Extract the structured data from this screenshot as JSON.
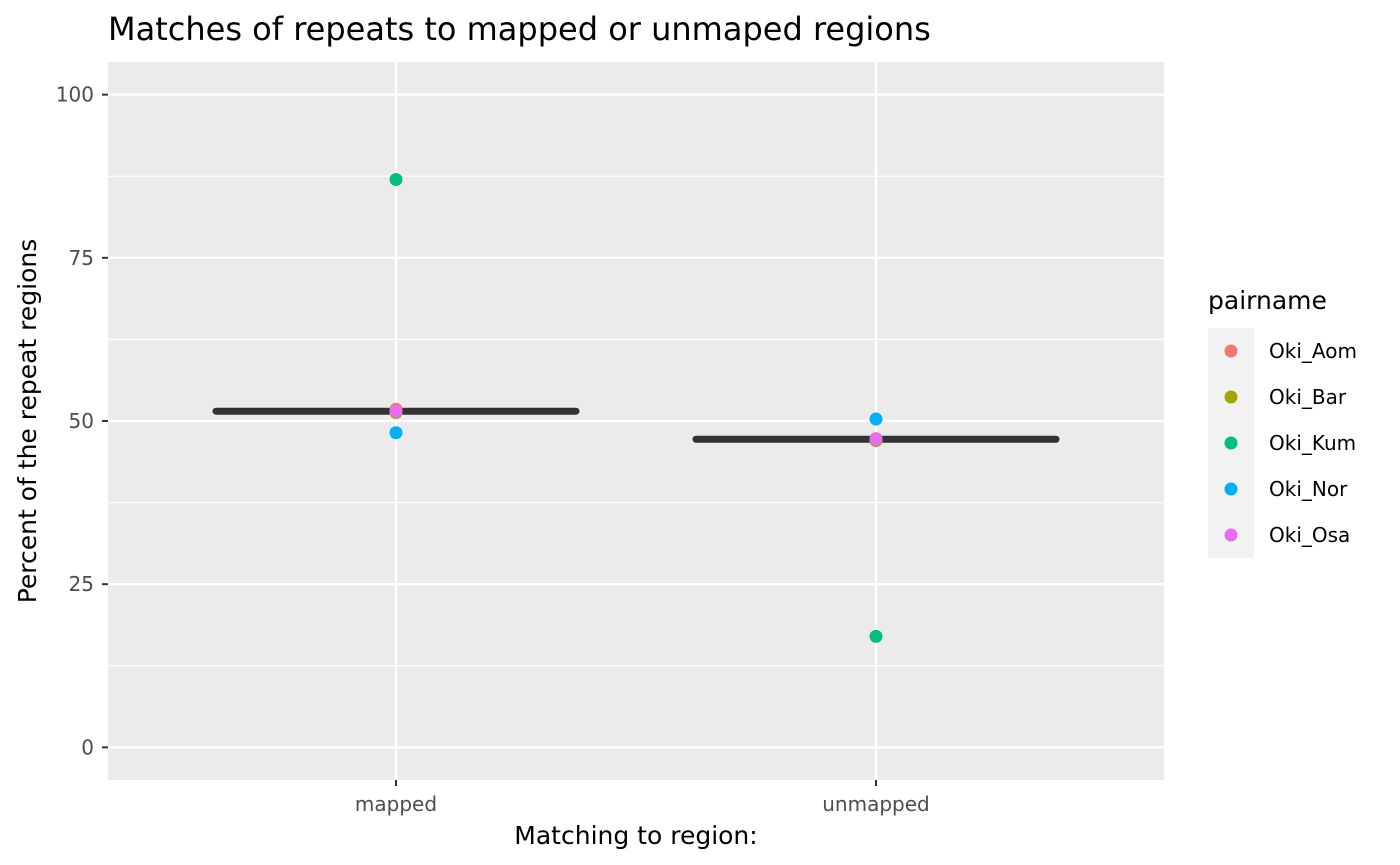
{
  "chart_data": {
    "type": "scatter",
    "title": "Matches of repeats to mapped or unmaped regions",
    "xlabel": "Matching to region:",
    "ylabel": "Percent of the repeat regions",
    "categories": [
      "mapped",
      "unmapped"
    ],
    "ylim": [
      -5,
      105
    ],
    "yticks": [
      0,
      25,
      50,
      75,
      100
    ],
    "yminor": [
      12.5,
      37.5,
      62.5,
      87.5
    ],
    "grid": true,
    "legend": {
      "title": "pairname",
      "position": "right"
    },
    "series": [
      {
        "name": "Oki_Aom",
        "color": "#F8766D",
        "values": [
          51.8,
          47.3
        ]
      },
      {
        "name": "Oki_Bar",
        "color": "#A3A500",
        "values": [
          51.3,
          47.0
        ]
      },
      {
        "name": "Oki_Kum",
        "color": "#00BF7D",
        "values": [
          87.0,
          17.0
        ]
      },
      {
        "name": "Oki_Nor",
        "color": "#00B0F6",
        "values": [
          48.2,
          50.3
        ]
      },
      {
        "name": "Oki_Osa",
        "color": "#E76BF3",
        "values": [
          51.5,
          47.2
        ]
      }
    ],
    "medians": [
      51.5,
      47.2
    ],
    "colors": {
      "panel_background": "#EBEBEB",
      "grid": "#FFFFFF",
      "median_bar": "#333333",
      "legend_key_background": "#F2F2F2"
    }
  }
}
